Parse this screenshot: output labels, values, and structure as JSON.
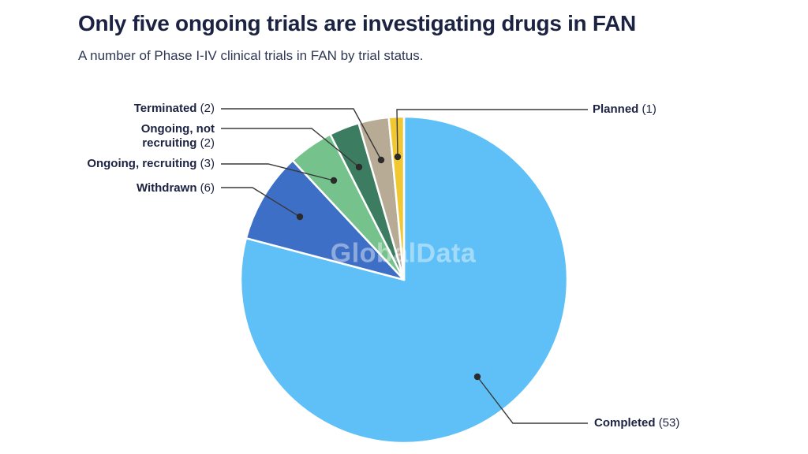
{
  "header": {
    "title": "Only five ongoing trials are investigating drugs in FAN",
    "subtitle": "A number of Phase I-IV clinical trials in FAN by trial status."
  },
  "watermark": "GlobalData",
  "colors": {
    "background": "#ffffff",
    "title_text": "#1c2342",
    "leader_line": "#3a3a3a",
    "leader_dot": "#2b2b2b",
    "slice_stroke": "#ffffff"
  },
  "chart_data": {
    "type": "pie",
    "title": "Only five ongoing trials are investigating drugs in FAN",
    "subtitle": "A number of Phase I-IV clinical trials in FAN by trial status.",
    "total": 67,
    "start_angle": "12 o'clock, clockwise",
    "legend_position": "callout labels with leader lines",
    "slices": [
      {
        "name": "Completed",
        "value": 53,
        "count_label": "(53)",
        "color": "#5fc0f7"
      },
      {
        "name": "Withdrawn",
        "value": 6,
        "count_label": "(6)",
        "color": "#3e6fc6"
      },
      {
        "name": "Ongoing, recruiting",
        "value": 3,
        "count_label": "(3)",
        "color": "#76c28d"
      },
      {
        "name": "Ongoing, not recruiting",
        "value": 2,
        "count_label": "(2)",
        "color": "#3c7d62"
      },
      {
        "name": "Terminated",
        "value": 2,
        "count_label": "(2)",
        "color": "#b8ab96"
      },
      {
        "name": "Planned",
        "value": 1,
        "count_label": "(1)",
        "color": "#f1c832"
      }
    ]
  }
}
